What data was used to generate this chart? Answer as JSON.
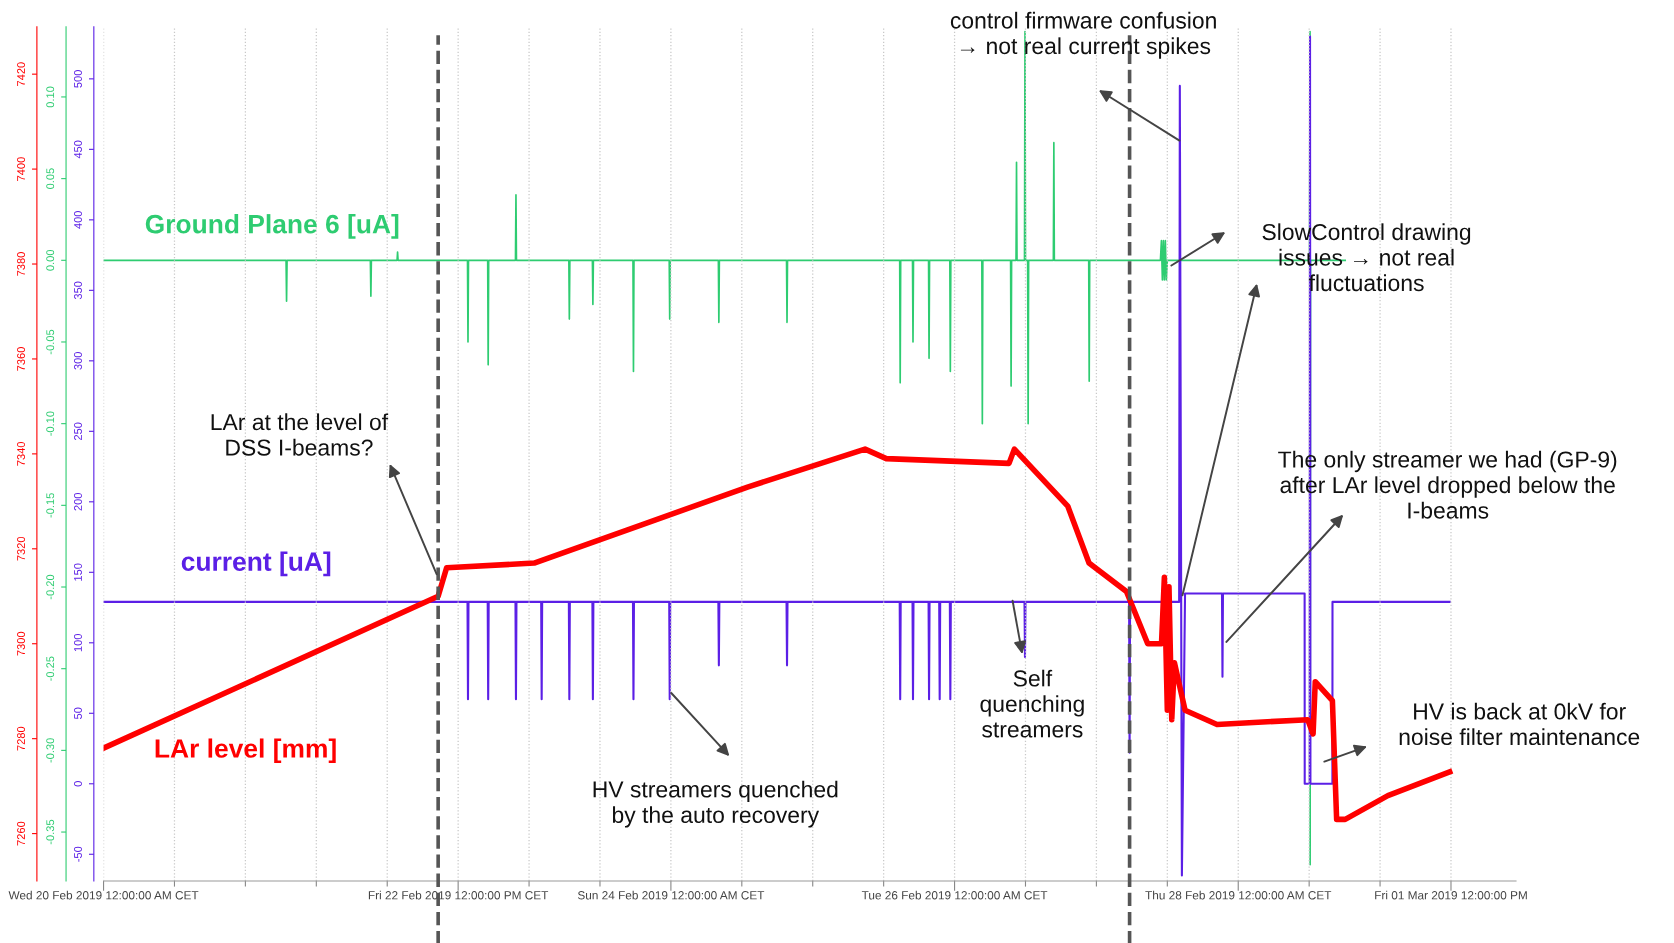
{
  "chart_data": {
    "type": "line",
    "line_style": "solid",
    "grid": "x",
    "xlim": [
      "2019-02-20T00:00",
      "2019-03-01T23:00"
    ],
    "xticks": [
      {
        "value": "2019-02-20T00:00",
        "label": "Wed 20 Feb 2019 12:00:00 AM CET"
      },
      {
        "value": "2019-02-20T12:00",
        "label": null
      },
      {
        "value": "2019-02-21T00:00",
        "label": null
      },
      {
        "value": "2019-02-21T12:00",
        "label": null
      },
      {
        "value": "2019-02-22T00:00",
        "label": null
      },
      {
        "value": "2019-02-22T12:00",
        "label": "Fri 22 Feb 2019 12:00:00 PM CET"
      },
      {
        "value": "2019-02-23T00:00",
        "label": null
      },
      {
        "value": "2019-02-23T12:00",
        "label": null
      },
      {
        "value": "2019-02-24T00:00",
        "label": "Sun 24 Feb 2019 12:00:00 AM CET"
      },
      {
        "value": "2019-02-24T12:00",
        "label": null
      },
      {
        "value": "2019-02-25T00:00",
        "label": null
      },
      {
        "value": "2019-02-25T12:00",
        "label": null
      },
      {
        "value": "2019-02-26T00:00",
        "label": "Tue 26 Feb 2019 12:00:00 AM CET"
      },
      {
        "value": "2019-02-26T12:00",
        "label": null
      },
      {
        "value": "2019-02-27T00:00",
        "label": null
      },
      {
        "value": "2019-02-27T12:00",
        "label": null
      },
      {
        "value": "2019-02-28T00:00",
        "label": "Thu 28 Feb 2019 12:00:00 AM CET"
      },
      {
        "value": "2019-02-28T12:00",
        "label": null
      },
      {
        "value": "2019-03-01T00:00",
        "label": null
      },
      {
        "value": "2019-03-01T12:00",
        "label": "Fri 01 Mar 2019 12:00:00 PM"
      }
    ],
    "ylim": [
      7250,
      7430
    ],
    "yticks": [
      7260,
      7280,
      7300,
      7320,
      7340,
      7360,
      7380,
      7400,
      7420
    ],
    "y2lim": [
      -0.38,
      0.143
    ],
    "y2ticks": [
      {
        "value": -0.35,
        "label": "-0.35"
      },
      {
        "value": -0.3,
        "label": "-0.30"
      },
      {
        "value": -0.25,
        "label": "-0.25"
      },
      {
        "value": -0.2,
        "label": "-0.20"
      },
      {
        "value": -0.15,
        "label": "-0.15"
      },
      {
        "value": -0.1,
        "label": "-0.10"
      },
      {
        "value": -0.05,
        "label": "-0.05"
      },
      {
        "value": 0,
        "label": "0.00"
      },
      {
        "value": 0.05,
        "label": "0.05"
      },
      {
        "value": 0.1,
        "label": "0.10"
      }
    ],
    "y3lim": [
      -69,
      537
    ],
    "y3ticks": [
      {
        "value": -50,
        "label": "-50"
      },
      0,
      50,
      100,
      150,
      200,
      250,
      300,
      350,
      400,
      450,
      500
    ],
    "series": [
      {
        "name": "Ground Plane 6 [uA]",
        "color": "#2ecc71",
        "axis": "y2",
        "x": [
          "2019-02-20T00:00",
          "2019-02-21T06:53",
          "2019-02-21T06:58",
          "2019-02-21T07:03",
          "2019-02-21T21:09",
          "2019-02-21T21:14",
          "2019-02-21T21:19",
          "2019-02-22T01:40",
          "2019-02-22T01:45",
          "2019-02-22T01:50",
          "2019-02-22T13:35",
          "2019-02-22T13:40",
          "2019-02-22T13:45",
          "2019-02-22T17:00",
          "2019-02-22T17:05",
          "2019-02-22T17:10",
          "2019-02-22T21:42",
          "2019-02-22T21:47",
          "2019-02-22T21:52",
          "2019-02-23T06:44",
          "2019-02-23T06:49",
          "2019-02-23T06:54",
          "2019-02-23T10:43",
          "2019-02-23T10:48",
          "2019-02-23T10:53",
          "2019-02-23T17:35",
          "2019-02-23T17:40",
          "2019-02-23T17:45",
          "2019-02-23T23:43",
          "2019-02-23T23:48",
          "2019-02-23T23:53",
          "2019-02-24T08:02",
          "2019-02-24T08:07",
          "2019-02-24T08:12",
          "2019-02-24T19:34",
          "2019-02-24T19:39",
          "2019-02-24T19:44",
          "2019-02-25T14:43",
          "2019-02-25T14:48",
          "2019-02-25T14:53",
          "2019-02-25T16:53",
          "2019-02-25T16:58",
          "2019-02-25T17:03",
          "2019-02-25T19:36",
          "2019-02-25T19:41",
          "2019-02-25T19:46",
          "2019-02-25T23:12",
          "2019-02-25T23:17",
          "2019-02-25T23:22",
          "2019-02-26T04:37",
          "2019-02-26T04:42",
          "2019-02-26T04:47",
          "2019-02-26T09:29",
          "2019-02-26T09:34",
          "2019-02-26T09:39",
          "2019-02-26T10:24",
          "2019-02-26T10:29",
          "2019-02-26T10:34",
          "2019-02-26T11:50",
          "2019-02-26T11:55",
          "2019-02-26T12:00",
          "2019-02-26T12:22",
          "2019-02-26T12:27",
          "2019-02-26T12:32",
          "2019-02-26T16:43",
          "2019-02-26T16:48",
          "2019-02-26T16:53",
          "2019-02-26T22:42",
          "2019-02-26T22:47",
          "2019-02-26T22:52",
          "2019-02-27T10:50",
          "2019-02-27T11:00",
          "2019-02-27T11:10",
          "2019-02-27T11:20",
          "2019-02-27T11:30",
          "2019-02-27T11:40",
          "2019-02-27T11:50",
          "2019-02-27T12:00",
          "2019-02-28T12:04",
          "2019-02-28T12:09",
          "2019-02-28T12:10",
          "2019-02-28T12:14",
          "2019-02-28T18:06"
        ],
        "values": [
          0,
          0,
          -0.025,
          0,
          0,
          -0.022,
          0,
          0,
          0.005,
          0,
          0,
          -0.05,
          0,
          0,
          -0.064,
          0,
          0,
          0.04,
          0,
          0,
          -0.036,
          0,
          0,
          -0.027,
          0,
          0,
          -0.068,
          0,
          0,
          -0.036,
          0,
          0,
          -0.038,
          0,
          0,
          -0.038,
          0,
          0,
          -0.075,
          0,
          0,
          -0.05,
          0,
          0,
          -0.06,
          0,
          0,
          -0.068,
          0,
          0,
          -0.1,
          0,
          0,
          -0.077,
          0,
          0,
          0.06,
          0,
          0,
          0.14,
          0,
          0,
          -0.1,
          0,
          0,
          0.072,
          0,
          0,
          -0.074,
          0,
          0,
          0.012,
          -0.012,
          0.012,
          -0.012,
          0.012,
          -0.012,
          0,
          0,
          0.14,
          -0.37,
          0,
          0
        ]
      },
      {
        "name": "current [uA]",
        "color": "#5b1fe6",
        "axis": "y3",
        "x": [
          "2019-02-20T00:00",
          "2019-02-22T13:35",
          "2019-02-22T13:40",
          "2019-02-22T13:45",
          "2019-02-22T17:00",
          "2019-02-22T17:05",
          "2019-02-22T17:10",
          "2019-02-22T21:42",
          "2019-02-22T21:47",
          "2019-02-22T21:52",
          "2019-02-23T02:03",
          "2019-02-23T02:08",
          "2019-02-23T02:13",
          "2019-02-23T06:44",
          "2019-02-23T06:49",
          "2019-02-23T06:54",
          "2019-02-23T10:43",
          "2019-02-23T10:48",
          "2019-02-23T10:53",
          "2019-02-23T17:35",
          "2019-02-23T17:40",
          "2019-02-23T17:45",
          "2019-02-23T23:43",
          "2019-02-23T23:48",
          "2019-02-23T23:53",
          "2019-02-24T08:02",
          "2019-02-24T08:07",
          "2019-02-24T08:12",
          "2019-02-24T19:34",
          "2019-02-24T19:39",
          "2019-02-24T19:44",
          "2019-02-25T14:43",
          "2019-02-25T14:48",
          "2019-02-25T14:53",
          "2019-02-25T16:53",
          "2019-02-25T16:58",
          "2019-02-25T17:03",
          "2019-02-25T19:36",
          "2019-02-25T19:41",
          "2019-02-25T19:46",
          "2019-02-25T21:24",
          "2019-02-25T21:29",
          "2019-02-25T21:34",
          "2019-02-25T23:12",
          "2019-02-25T23:17",
          "2019-02-25T23:22",
          "2019-02-26T11:50",
          "2019-02-26T11:55",
          "2019-02-26T12:00",
          "2019-02-27T05:32",
          "2019-02-27T05:37",
          "2019-02-27T05:42",
          "2019-02-27T14:00",
          "2019-02-27T14:07",
          "2019-02-27T14:28",
          "2019-02-27T15:00",
          "2019-02-27T21:15",
          "2019-02-27T21:20",
          "2019-02-27T21:25",
          "2019-02-28T11:14",
          "2019-02-28T11:15",
          "2019-02-28T12:05",
          "2019-02-28T12:09",
          "2019-02-28T12:13",
          "2019-02-28T15:56",
          "2019-02-28T15:57",
          "2019-03-01T11:47"
        ],
        "values": [
          129,
          129,
          60,
          129,
          129,
          60,
          129,
          129,
          60,
          129,
          129,
          60,
          129,
          129,
          60,
          129,
          129,
          60,
          129,
          129,
          60,
          129,
          129,
          60,
          129,
          129,
          84,
          129,
          129,
          84,
          129,
          129,
          60,
          129,
          129,
          60,
          129,
          129,
          60,
          129,
          129,
          60,
          129,
          129,
          60,
          129,
          129,
          90,
          129,
          129,
          22,
          129,
          129,
          495,
          -65,
          135,
          135,
          76,
          135,
          135,
          0,
          0,
          530,
          0,
          0,
          129,
          129
        ]
      },
      {
        "name": "LAr level [mm]",
        "color": "#ff0000",
        "axis": "y",
        "x": [
          "2019-02-20T00:00",
          "2019-02-22T08:37",
          "2019-02-22T10:03",
          "2019-02-23T00:52",
          "2019-02-23T18:56",
          "2019-02-24T12:58",
          "2019-02-25T08:51",
          "2019-02-25T12:27",
          "2019-02-26T09:13",
          "2019-02-26T10:07",
          "2019-02-26T19:09",
          "2019-02-26T22:45",
          "2019-02-27T05:05",
          "2019-02-27T08:41",
          "2019-02-27T11:01",
          "2019-02-27T11:30",
          "2019-02-27T12:00",
          "2019-02-27T12:17",
          "2019-02-27T12:45",
          "2019-02-27T13:12",
          "2019-02-27T15:00",
          "2019-02-27T20:25",
          "2019-02-28T11:46",
          "2019-02-28T12:40",
          "2019-02-28T13:02",
          "2019-02-28T15:56",
          "2019-02-28T16:39",
          "2019-02-28T18:06",
          "2019-03-01T01:19",
          "2019-03-01T11:47"
        ],
        "values": [
          7278,
          7310,
          7316,
          7317,
          7325,
          7333,
          7341,
          7339,
          7338,
          7341,
          7329,
          7317,
          7311,
          7300,
          7300,
          7314,
          7286,
          7312,
          7284,
          7296,
          7286,
          7283,
          7284,
          7281,
          7292,
          7288,
          7263,
          7263,
          7268,
          7273
        ]
      }
    ],
    "ref_lines": [
      {
        "axis": "x",
        "value": "2019-02-22T08:37",
        "color": "#555555",
        "line_style": "dashed"
      },
      {
        "axis": "x",
        "value": "2019-02-27T05:37",
        "color": "#555555",
        "line_style": "dashed"
      }
    ],
    "annotations": [
      "control firmware confusion\n→ not real current spikes",
      "SlowControl drawing\nissues → not real\nfluctuations",
      "LAr at the level of\nDSS I-beams?",
      "The only streamer we had (GP-9)\nafter LAr level dropped below the\nI-beams",
      "Self\nquenching\nstreamers",
      "HV streamers quenched\nby the auto recovery",
      "HV is back at 0kV for\nnoise filter maintenance"
    ]
  }
}
